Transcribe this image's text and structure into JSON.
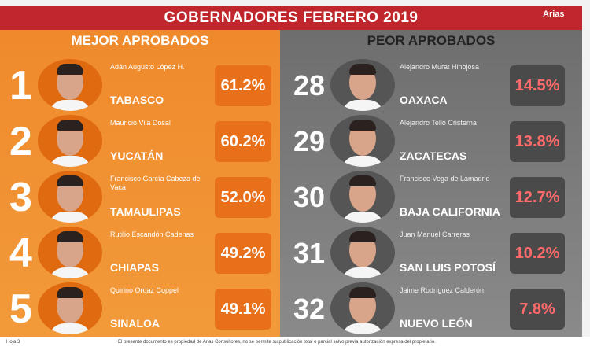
{
  "header": {
    "title": "GOBERNADORES FEBRERO 2019",
    "brand": "Arias"
  },
  "best": {
    "heading": "MEJOR APROBADOS",
    "rows": [
      {
        "rank": "1",
        "name": "Adán Augusto López H.",
        "state": "TABASCO",
        "approval": "61.2%"
      },
      {
        "rank": "2",
        "name": "Mauricio Vila Dosal",
        "state": "YUCATÁN",
        "approval": "60.2%"
      },
      {
        "rank": "3",
        "name": "Francisco García Cabeza de Vaca",
        "state": "TAMAULIPAS",
        "approval": "52.0%"
      },
      {
        "rank": "4",
        "name": "Rutilio Escandón Cadenas",
        "state": "CHIAPAS",
        "approval": "49.2%"
      },
      {
        "rank": "5",
        "name": "Quirino Ordaz Coppel",
        "state": "SINALOA",
        "approval": "49.1%"
      }
    ]
  },
  "worst": {
    "heading": "PEOR APROBADOS",
    "rows": [
      {
        "rank": "28",
        "name": "Alejandro Murat Hinojosa",
        "state": "OAXACA",
        "approval": "14.5%"
      },
      {
        "rank": "29",
        "name": "Alejandro Tello Cristerna",
        "state": "ZACATECAS",
        "approval": "13.8%"
      },
      {
        "rank": "30",
        "name": "Francisco Vega de Lamadrid",
        "state": "BAJA CALIFORNIA",
        "approval": "12.7%"
      },
      {
        "rank": "31",
        "name": "Juan Manuel Carreras",
        "state": "SAN LUIS POTOSÍ",
        "approval": "10.2%"
      },
      {
        "rank": "32",
        "name": "Jaime Rodríguez Calderón",
        "state": "NUEVO LEÓN",
        "approval": "7.8%"
      }
    ]
  },
  "footer": {
    "page": "Hoja 3",
    "disclaimer": "El presente documento es propiedad de Arias Consultores, no se permite su publicación total o parcial salvo previa autorización expresa del propietario."
  }
}
